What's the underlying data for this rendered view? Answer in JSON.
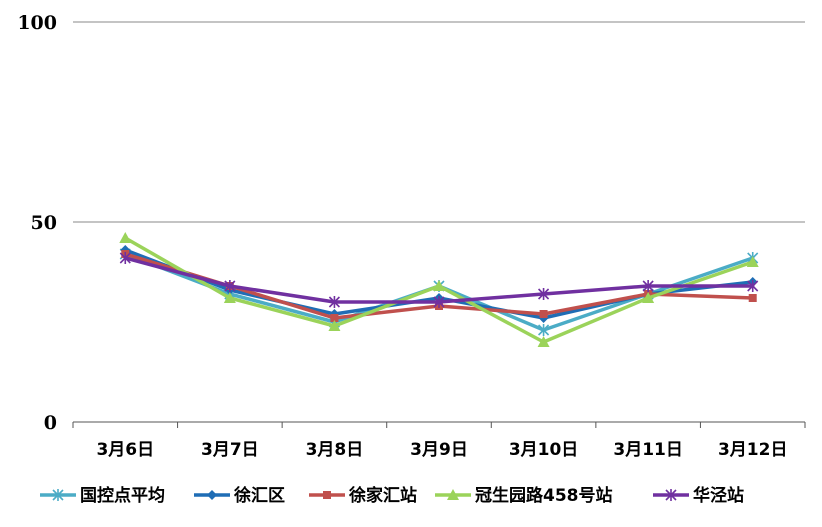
{
  "chart_data": {
    "type": "line",
    "categories": [
      "3月6日",
      "3月7日",
      "3月8日",
      "3月9日",
      "3月10日",
      "3月11日",
      "3月12日"
    ],
    "ylim": [
      0,
      100
    ],
    "yticks": [
      0,
      50,
      100
    ],
    "grid": true,
    "legend": "bottom",
    "series": [
      {
        "name": "国控点平均",
        "color": "#4bacc6",
        "marker": "star",
        "values": [
          42,
          32,
          25,
          34,
          23,
          32,
          41
        ]
      },
      {
        "name": "徐汇区",
        "color": "#1f6db5",
        "marker": "diamond",
        "values": [
          43,
          33,
          27,
          31,
          26,
          32,
          35
        ]
      },
      {
        "name": "徐家汇站",
        "color": "#c0504d",
        "marker": "square",
        "values": [
          42,
          34,
          26,
          29,
          27,
          32,
          31
        ]
      },
      {
        "name": "冠生园路458号站",
        "color": "#9bd35a",
        "marker": "triangle",
        "values": [
          46,
          31,
          24,
          34,
          20,
          31,
          40
        ]
      },
      {
        "name": "华泾站",
        "color": "#7030a0",
        "marker": "star",
        "values": [
          41,
          34,
          30,
          30,
          32,
          34,
          34
        ]
      }
    ]
  }
}
